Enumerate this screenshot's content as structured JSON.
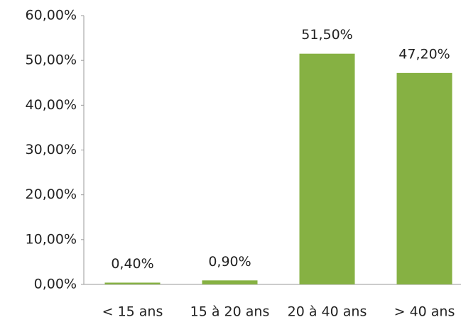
{
  "chart_data": {
    "type": "bar",
    "categories": [
      "< 15 ans",
      "15 à 20 ans",
      "20 à 40 ans",
      "> 40 ans"
    ],
    "values": [
      0.4,
      0.9,
      51.5,
      47.2
    ],
    "value_labels": [
      "0,40%",
      "0,90%",
      "51,50%",
      "47,20%"
    ],
    "color": "#86b143",
    "ylim": [
      0,
      60
    ],
    "yticks": [
      {
        "value": 0,
        "label": "0,00%"
      },
      {
        "value": 10,
        "label": "10,00%"
      },
      {
        "value": 20,
        "label": "20,00%"
      },
      {
        "value": 30,
        "label": "30,00%"
      },
      {
        "value": 40,
        "label": "40,00%"
      },
      {
        "value": 50,
        "label": "50,00%"
      },
      {
        "value": 60,
        "label": "60,00%"
      }
    ],
    "grid": false
  }
}
